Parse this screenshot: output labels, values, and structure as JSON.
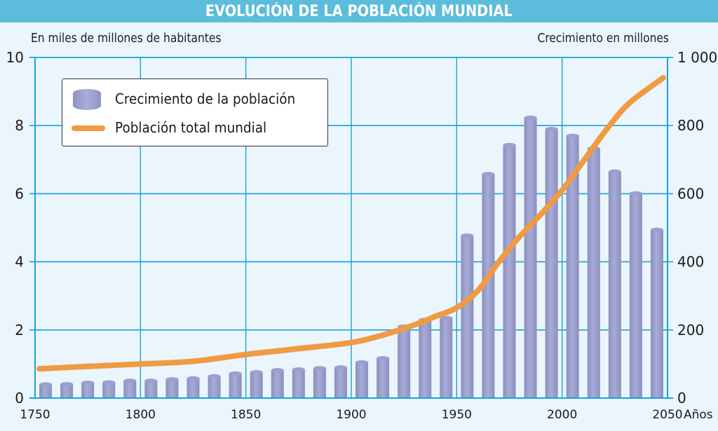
{
  "chart_data": {
    "type": "bar",
    "title": "EVOLUCIÓN DE LA POBLACIÓN MUNDIAL",
    "ylabel_left": "En miles de millones de habitantes",
    "ylabel_right": "Crecimiento en millones",
    "xlabel": "Años",
    "xlim": [
      1750,
      2050
    ],
    "ylim_left": [
      0,
      10
    ],
    "ylim_right": [
      0,
      1000
    ],
    "grid": true,
    "x_ticks": [
      "1750",
      "1800",
      "1850",
      "1900",
      "1950",
      "2000",
      "2050"
    ],
    "x_tick_values": [
      1750,
      1800,
      1850,
      1900,
      1950,
      2000,
      2050
    ],
    "y_ticks_left": [
      "0",
      "2",
      "4",
      "6",
      "8",
      "10"
    ],
    "y_tick_values_left": [
      0,
      2,
      4,
      6,
      8,
      10
    ],
    "y_ticks_right": [
      "0",
      "200",
      "400",
      "600",
      "800",
      "1 000"
    ],
    "y_tick_values_right": [
      0,
      200,
      400,
      600,
      800,
      1000
    ],
    "legend_position": "top-left",
    "series": [
      {
        "name": "Crecimiento de la población",
        "type": "bar",
        "axis": "right",
        "color": "#9a9fcc",
        "x": [
          1755,
          1765,
          1775,
          1785,
          1795,
          1805,
          1815,
          1825,
          1835,
          1845,
          1855,
          1865,
          1875,
          1885,
          1895,
          1905,
          1915,
          1925,
          1935,
          1945,
          1955,
          1965,
          1975,
          1985,
          1995,
          2005,
          2015,
          2025,
          2035,
          2045
        ],
        "values": [
          40,
          41,
          45,
          46,
          51,
          51,
          55,
          58,
          64,
          72,
          76,
          82,
          84,
          88,
          90,
          105,
          117,
          210,
          230,
          235,
          477,
          658,
          743,
          823,
          790,
          770,
          733,
          665,
          601,
          494
        ]
      },
      {
        "name": "Población total mundial",
        "type": "line",
        "axis": "left",
        "color": "#f09a42",
        "x": [
          1752,
          1775,
          1800,
          1825,
          1850,
          1875,
          1900,
          1915,
          1930,
          1940,
          1950,
          1960,
          1970,
          1980,
          1990,
          2000,
          2010,
          2020,
          2030,
          2040,
          2048
        ],
        "values": [
          0.86,
          0.93,
          1.0,
          1.08,
          1.28,
          1.45,
          1.63,
          1.85,
          2.15,
          2.4,
          2.65,
          3.15,
          4.0,
          4.75,
          5.4,
          6.1,
          6.95,
          7.8,
          8.55,
          9.05,
          9.4
        ]
      }
    ]
  }
}
